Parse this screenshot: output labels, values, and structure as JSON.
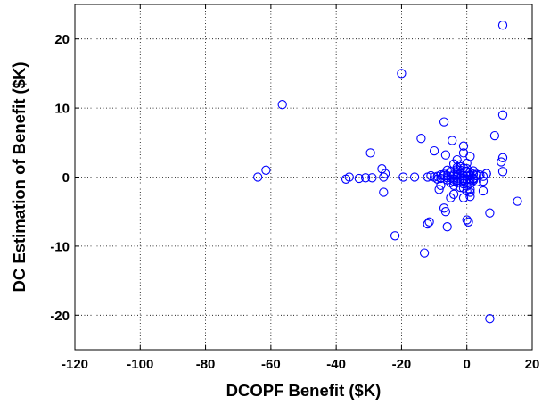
{
  "chart_data": {
    "type": "scatter",
    "title": "",
    "xlabel": "DCOPF Benefit ($K)",
    "ylabel": "DC Estimation of Benefit ($K)",
    "xlim": [
      -120,
      20
    ],
    "ylim": [
      -25,
      25
    ],
    "xticks": [
      -120,
      -100,
      -80,
      -60,
      -40,
      -20,
      0,
      20
    ],
    "yticks": [
      -20,
      -10,
      0,
      10,
      20
    ],
    "grid": true,
    "marker": "circle-open",
    "marker_color": "#0000ff",
    "series": [
      {
        "x": [
          11,
          -20,
          -56.5,
          11,
          -7,
          8.5,
          -29.5,
          -4.5,
          -14,
          -1,
          -10,
          -6.5,
          -1,
          1,
          -3,
          11,
          10.5,
          11,
          -61.5,
          -64,
          -37,
          -36,
          -33,
          -31,
          -29,
          -26,
          -25,
          -25.5,
          -16,
          -19.5,
          -12,
          -11,
          -9,
          -8,
          -7,
          -6,
          -5,
          -4,
          -3,
          -2,
          -1,
          0,
          1,
          2,
          3,
          4,
          5,
          6,
          -8,
          -6,
          -4,
          -3,
          -2,
          -1,
          0,
          1,
          2,
          -5,
          -2,
          0,
          2,
          -3,
          -1,
          1,
          3,
          -6,
          -4,
          -2,
          0,
          2,
          -5,
          -3,
          -1,
          1,
          3,
          -4,
          -2,
          0,
          -3,
          -1,
          1,
          -2,
          0,
          -1,
          1,
          -4,
          -3,
          -1,
          0,
          2,
          -9,
          -7,
          -5,
          -3,
          1,
          5,
          -8,
          -6,
          0,
          6,
          -25.5,
          -8.5,
          -5,
          -4,
          -1,
          1,
          5,
          -10,
          -7,
          -6,
          0,
          -22,
          -12,
          -11.5,
          -6.5,
          0.5,
          7,
          15.5,
          -13,
          7
        ],
        "y": [
          22,
          15,
          10.5,
          9,
          8,
          6,
          3.5,
          5.3,
          5.6,
          4.5,
          3.8,
          3.2,
          3.5,
          3.0,
          2.5,
          2.8,
          2.2,
          0.8,
          1.0,
          0,
          -0.3,
          0,
          -0.2,
          -0.1,
          -0.1,
          1.2,
          0.5,
          0,
          0,
          0,
          0,
          0.2,
          0.1,
          0.3,
          0.4,
          0.2,
          0.1,
          0.3,
          0.6,
          0.5,
          0.2,
          0.1,
          0.3,
          0.4,
          0.2,
          0.3,
          0.1,
          0.5,
          -0.2,
          -0.4,
          -0.3,
          -0.5,
          -0.2,
          -0.6,
          -0.3,
          -0.4,
          -0.2,
          0.8,
          1.0,
          1.2,
          0.9,
          -0.8,
          -1.0,
          -0.9,
          -0.7,
          -0.1,
          -0.6,
          1.5,
          0.8,
          -0.5,
          0.6,
          1.1,
          1.3,
          0.7,
          0.4,
          -1.2,
          -1.5,
          -1.3,
          0.1,
          -0.2,
          0.2,
          1.8,
          2.0,
          -1.6,
          -1.8,
          1.9,
          0.3,
          -0.4,
          0.6,
          -0.3,
          -0.3,
          0.2,
          -0.8,
          1.4,
          -2.2,
          -0.6,
          -1.2,
          1.0,
          -2.0,
          0.5,
          -2.2,
          -1.8,
          -3.0,
          -2.5,
          -3.0,
          -2.8,
          -2.0,
          0,
          -4.5,
          -7.2,
          -6.2,
          -8.5,
          -6.8,
          -6.5,
          -5.0,
          -6.5,
          -5.2,
          -3.5,
          -11,
          -20.5
        ]
      }
    ]
  }
}
